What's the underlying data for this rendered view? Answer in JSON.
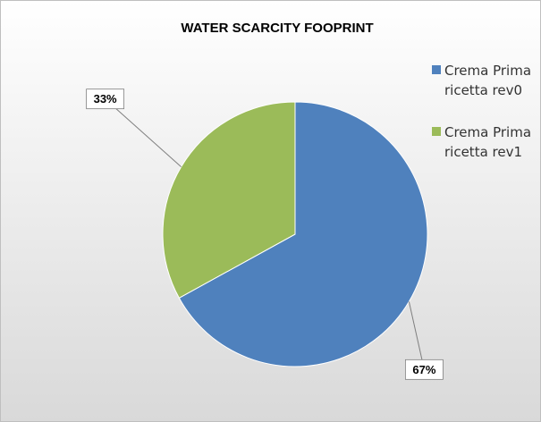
{
  "chart_data": {
    "type": "pie",
    "title": "WATER SCARCITY FOOPRINT",
    "categories": [
      "Crema Prima ricetta rev0",
      "Crema Prima ricetta rev1"
    ],
    "values": [
      67,
      33
    ],
    "value_labels": [
      "67%",
      "33%"
    ],
    "colors": [
      "#4f81bd",
      "#9bbb59"
    ],
    "legend": "right"
  }
}
